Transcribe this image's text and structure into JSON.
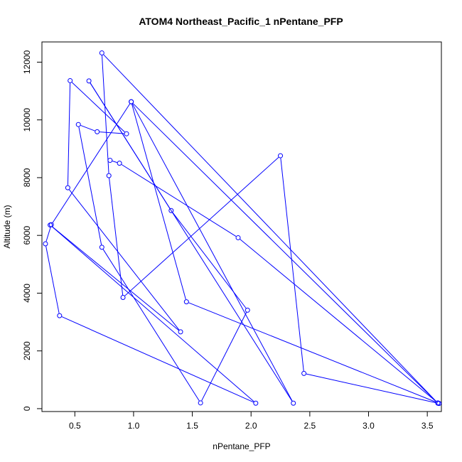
{
  "chart_data": {
    "type": "line",
    "title": "ATOM4 Northeast_Pacific_1 nPentane_PFP",
    "xlabel": "nPentane_PFP",
    "ylabel": "Altitude (m)",
    "xlim": [
      0.22,
      3.62
    ],
    "ylim": [
      -100,
      12700
    ],
    "xticks": [
      0.5,
      1.0,
      1.5,
      2.0,
      2.5,
      3.0,
      3.5
    ],
    "xtick_labels": [
      "0.5",
      "1.0",
      "1.5",
      "2.0",
      "2.5",
      "3.0",
      "3.5"
    ],
    "yticks": [
      0,
      2000,
      4000,
      6000,
      8000,
      10000,
      12000
    ],
    "ytick_labels": [
      "0",
      "2000",
      "4000",
      "6000",
      "8000",
      "10000",
      "12000"
    ],
    "grid": false,
    "series": [
      {
        "color": "#0000ff",
        "marker": "open-circle",
        "points": [
          {
            "x": 3.6,
            "y": 180
          },
          {
            "x": 2.45,
            "y": 1220
          },
          {
            "x": 2.25,
            "y": 8760
          },
          {
            "x": 0.91,
            "y": 3850
          },
          {
            "x": 0.79,
            "y": 8070
          },
          {
            "x": 0.73,
            "y": 12320
          },
          {
            "x": 3.59,
            "y": 190
          },
          {
            "x": 0.98,
            "y": 10630
          },
          {
            "x": 2.36,
            "y": 190
          },
          {
            "x": 0.62,
            "y": 11350
          },
          {
            "x": 1.32,
            "y": 6860
          },
          {
            "x": 1.97,
            "y": 3410
          },
          {
            "x": 1.57,
            "y": 200
          },
          {
            "x": 0.73,
            "y": 5590
          },
          {
            "x": 0.53,
            "y": 9840
          },
          {
            "x": 0.69,
            "y": 9590
          },
          {
            "x": 0.94,
            "y": 9520
          },
          {
            "x": 0.46,
            "y": 11360
          },
          {
            "x": 0.44,
            "y": 7650
          },
          {
            "x": 1.4,
            "y": 2660
          },
          {
            "x": 0.29,
            "y": 6360
          },
          {
            "x": 2.04,
            "y": 190
          },
          {
            "x": 0.37,
            "y": 3220
          },
          {
            "x": 0.25,
            "y": 5710
          },
          {
            "x": 0.3,
            "y": 6370
          },
          {
            "x": 0.98,
            "y": 10630
          },
          {
            "x": 1.45,
            "y": 3700
          },
          {
            "x": 3.59,
            "y": 200
          },
          {
            "x": 1.89,
            "y": 5920
          },
          {
            "x": 0.88,
            "y": 8500
          },
          {
            "x": 0.8,
            "y": 8600
          }
        ]
      }
    ]
  }
}
